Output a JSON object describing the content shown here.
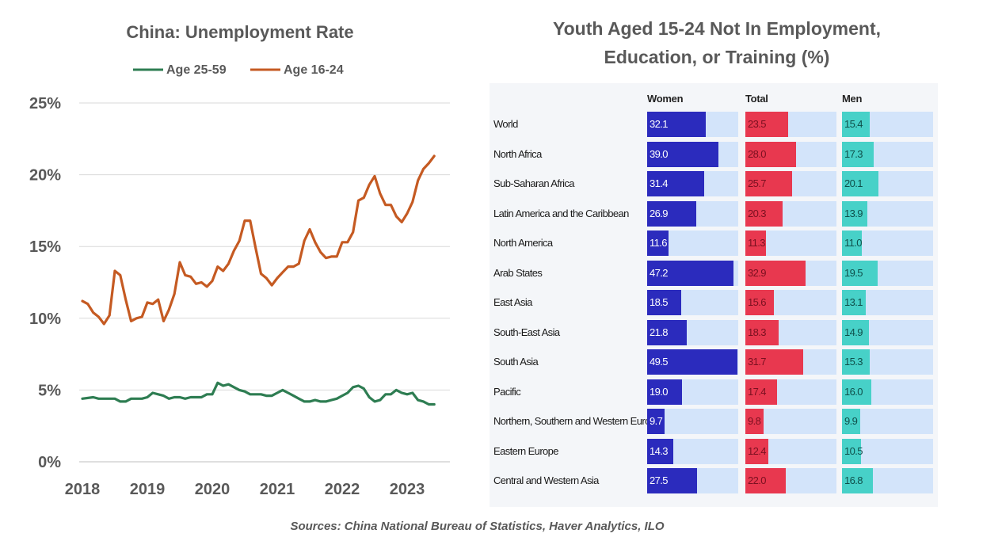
{
  "chart_data": [
    {
      "type": "line",
      "title": "China: Unemployment Rate",
      "xlabel": "",
      "ylabel": "",
      "ylim": [
        0,
        25
      ],
      "y_ticks": [
        "0%",
        "5%",
        "10%",
        "15%",
        "20%",
        "25%"
      ],
      "x_ticks": [
        "2018",
        "2019",
        "2020",
        "2021",
        "2022",
        "2023"
      ],
      "grid": true,
      "legend": "top-center",
      "series": [
        {
          "name": "Age 25-59",
          "color": "#2e7d52",
          "x": [
            "2018-01",
            "2018-03",
            "2018-04",
            "2018-05",
            "2018-06",
            "2018-07",
            "2018-08",
            "2018-09",
            "2018-10",
            "2018-11",
            "2018-12",
            "2019-01",
            "2019-02",
            "2019-03",
            "2019-04",
            "2019-05",
            "2019-06",
            "2019-07",
            "2019-08",
            "2019-09",
            "2019-10",
            "2019-11",
            "2019-12",
            "2020-01",
            "2020-02",
            "2020-03",
            "2020-04",
            "2020-05",
            "2020-06",
            "2020-07",
            "2020-08",
            "2020-09",
            "2020-10",
            "2020-11",
            "2020-12",
            "2021-01",
            "2021-02",
            "2021-03",
            "2021-04",
            "2021-05",
            "2021-06",
            "2021-07",
            "2021-08",
            "2021-09",
            "2021-10",
            "2021-11",
            "2021-12",
            "2022-01",
            "2022-02",
            "2022-03",
            "2022-04",
            "2022-05",
            "2022-06",
            "2022-07",
            "2022-08",
            "2022-09",
            "2022-10",
            "2022-11",
            "2022-12",
            "2023-01",
            "2023-02",
            "2023-03",
            "2023-04",
            "2023-05",
            "2023-06"
          ],
          "values": [
            4.4,
            4.5,
            4.4,
            4.4,
            4.4,
            4.4,
            4.2,
            4.2,
            4.4,
            4.4,
            4.4,
            4.5,
            4.8,
            4.7,
            4.6,
            4.4,
            4.5,
            4.5,
            4.4,
            4.5,
            4.5,
            4.5,
            4.7,
            4.7,
            5.5,
            5.3,
            5.4,
            5.2,
            5.0,
            4.9,
            4.7,
            4.7,
            4.7,
            4.6,
            4.6,
            4.8,
            5.0,
            4.8,
            4.6,
            4.4,
            4.2,
            4.2,
            4.3,
            4.2,
            4.2,
            4.3,
            4.4,
            4.6,
            4.8,
            5.2,
            5.3,
            5.1,
            4.5,
            4.2,
            4.3,
            4.7,
            4.7,
            5.0,
            4.8,
            4.7,
            4.8,
            4.3,
            4.2,
            4.0,
            4.0
          ]
        },
        {
          "name": "Age 16-24",
          "color": "#c55a22",
          "x": [
            "2018-01",
            "2018-02",
            "2018-03",
            "2018-04",
            "2018-05",
            "2018-06",
            "2018-07",
            "2018-08",
            "2018-09",
            "2018-10",
            "2018-11",
            "2018-12",
            "2019-01",
            "2019-02",
            "2019-03",
            "2019-04",
            "2019-05",
            "2019-06",
            "2019-07",
            "2019-08",
            "2019-09",
            "2019-10",
            "2019-11",
            "2019-12",
            "2020-01",
            "2020-02",
            "2020-03",
            "2020-04",
            "2020-05",
            "2020-06",
            "2020-07",
            "2020-08",
            "2020-09",
            "2020-10",
            "2020-11",
            "2020-12",
            "2021-01",
            "2021-02",
            "2021-03",
            "2021-04",
            "2021-05",
            "2021-06",
            "2021-07",
            "2021-08",
            "2021-09",
            "2021-10",
            "2021-11",
            "2021-12",
            "2022-01",
            "2022-02",
            "2022-03",
            "2022-04",
            "2022-05",
            "2022-06",
            "2022-07",
            "2022-08",
            "2022-09",
            "2022-10",
            "2022-11",
            "2022-12",
            "2023-01",
            "2023-02",
            "2023-03",
            "2023-04",
            "2023-05",
            "2023-06"
          ],
          "values": [
            11.2,
            11.0,
            10.4,
            10.1,
            9.6,
            10.2,
            13.3,
            13.0,
            11.3,
            9.8,
            10.0,
            10.1,
            11.1,
            11.0,
            11.3,
            9.8,
            10.6,
            11.7,
            13.9,
            13.0,
            12.9,
            12.4,
            12.5,
            12.2,
            12.6,
            13.6,
            13.3,
            13.8,
            14.7,
            15.4,
            16.8,
            16.8,
            14.9,
            13.1,
            12.8,
            12.3,
            12.8,
            13.2,
            13.6,
            13.6,
            13.8,
            15.4,
            16.2,
            15.3,
            14.6,
            14.2,
            14.3,
            14.3,
            15.3,
            15.3,
            16.0,
            18.2,
            18.4,
            19.3,
            19.9,
            18.7,
            17.9,
            17.9,
            17.1,
            16.7,
            17.3,
            18.1,
            19.6,
            20.4,
            20.8,
            21.3
          ]
        }
      ]
    },
    {
      "type": "bar",
      "title": "Youth Aged 15-24 Not In Employment, Education, or Training (%)",
      "title_lines": [
        "Youth Aged 15-24 Not In Employment,",
        "Education, or Training (%)"
      ],
      "columns": [
        "Women",
        "Total",
        "Men"
      ],
      "column_colors": {
        "Women": "#2b2bbd",
        "Total": "#e8384f",
        "Men": "#47d1c8",
        "track": "#d3e4fa"
      },
      "xlim": [
        0,
        50
      ],
      "categories": [
        "World",
        "North Africa",
        "Sub-Saharan Africa",
        "Latin America and the Caribbean",
        "North America",
        "Arab States",
        "East Asia",
        "South-East Asia",
        "South Asia",
        "Pacific",
        "Northern, Southern and Western Europe",
        "Eastern Europe",
        "Central and Western Asia"
      ],
      "series": [
        {
          "name": "Women",
          "values": [
            "32.1",
            "39.0",
            "31.4",
            "26.9",
            "11.6",
            "47.2",
            "18.5",
            "21.8",
            "49.5",
            "19.0",
            "9.7",
            "14.3",
            "27.5"
          ]
        },
        {
          "name": "Total",
          "values": [
            "23.5",
            "28.0",
            "25.7",
            "20.3",
            "11.3",
            "32.9",
            "15.6",
            "18.3",
            "31.7",
            "17.4",
            "9.8",
            "12.4",
            "22.0"
          ]
        },
        {
          "name": "Men",
          "values": [
            "15.4",
            "17.3",
            "20.1",
            "13.9",
            "11.0",
            "19.5",
            "13.1",
            "14.9",
            "15.3",
            "16.0",
            "9.9",
            "10.5",
            "16.8"
          ]
        }
      ]
    }
  ],
  "footnote": "Sources: China National Bureau of Statistics, Haver Analytics, ILO"
}
